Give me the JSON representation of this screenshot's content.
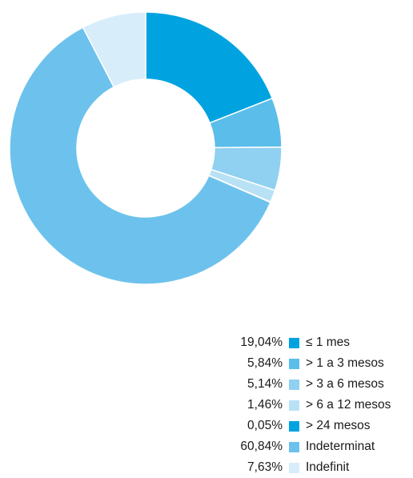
{
  "chart_data": {
    "type": "pie",
    "donut": true,
    "legend_placement": "bottom-right",
    "slices": [
      {
        "label": "≤ 1 mes",
        "display_value": "19,04%",
        "value": 19.04,
        "color": "#00a3e0"
      },
      {
        "label": "> 1 a 3 mesos",
        "display_value": "5,84%",
        "value": 5.84,
        "color": "#5bbde9"
      },
      {
        "label": "> 3 a 6 mesos",
        "display_value": "5,14%",
        "value": 5.14,
        "color": "#90d0f0"
      },
      {
        "label": "> 6 a 12 mesos",
        "display_value": "1,46%",
        "value": 1.46,
        "color": "#b9e1f6"
      },
      {
        "label": "> 24 mesos",
        "display_value": "0,05%",
        "value": 0.05,
        "color": "#00a3e0"
      },
      {
        "label": "Indeterminat",
        "display_value": "60,84%",
        "value": 60.84,
        "color": "#6cc2ec"
      },
      {
        "label": "Indefinit",
        "display_value": "7,63%",
        "value": 7.63,
        "color": "#d7edfa"
      }
    ]
  }
}
